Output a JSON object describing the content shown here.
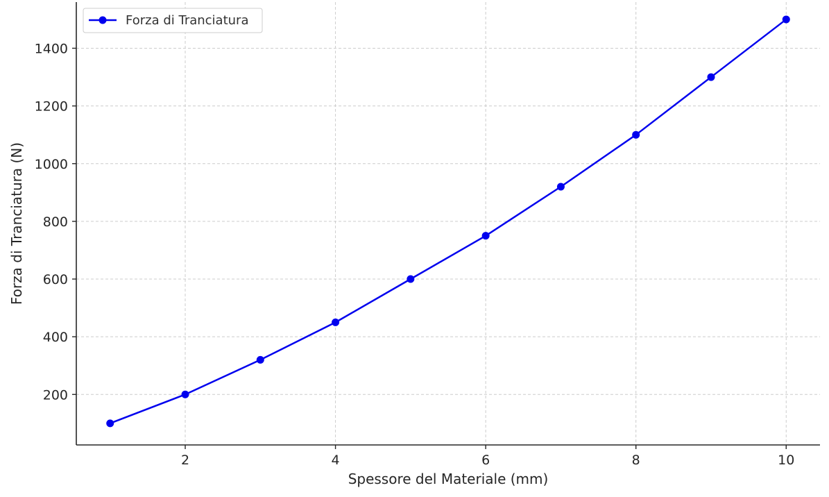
{
  "chart_data": {
    "type": "line",
    "title": "",
    "xlabel": "Spessore del Materiale (mm)",
    "ylabel": "Forza di Tranciatura (N)",
    "xlim": [
      0.55,
      10.45
    ],
    "ylim": [
      25,
      1560
    ],
    "x_ticks": [
      2,
      4,
      6,
      8,
      10
    ],
    "y_ticks": [
      200,
      400,
      600,
      800,
      1000,
      1200,
      1400
    ],
    "grid": true,
    "legend_position": "top-left",
    "series": [
      {
        "name": "Forza di Tranciatura",
        "color": "#0000ee",
        "marker": "circle",
        "x": [
          1,
          2,
          3,
          4,
          5,
          6,
          7,
          8,
          9,
          10
        ],
        "y": [
          100,
          200,
          320,
          450,
          600,
          750,
          920,
          1100,
          1300,
          1500
        ]
      }
    ]
  }
}
